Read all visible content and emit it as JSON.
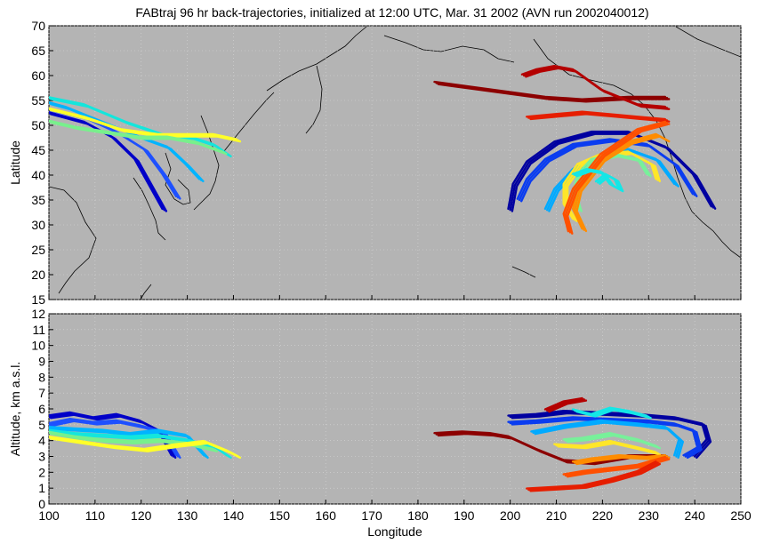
{
  "chart_data": [
    {
      "type": "line",
      "title": "FABtraj 96 hr back-trajectories, initialized at 12:00 UTC, Mar. 31 2002 (AVN run 2002040012)",
      "xlabel": "",
      "ylabel": "Latitude",
      "xlim": [
        100,
        250
      ],
      "ylim": [
        15,
        70
      ],
      "x_ticks": [
        "100",
        "110",
        "120",
        "130",
        "140",
        "150",
        "160",
        "170",
        "180",
        "190",
        "200",
        "210",
        "220",
        "230",
        "240",
        "250"
      ],
      "y_ticks": [
        "15",
        "20",
        "25",
        "30",
        "35",
        "40",
        "45",
        "50",
        "55",
        "60",
        "65",
        "70"
      ],
      "grid": true,
      "background": "#b4b4b4",
      "colormap": [
        "#00008f",
        "#0000ff",
        "#0080ff",
        "#00ffff",
        "#80ff80",
        "#ffff00",
        "#ff8000",
        "#ff0000",
        "#800000"
      ],
      "series": [
        {
          "color": "#0000c8",
          "x": [
            125,
            122,
            119,
            114,
            108,
            102,
            100
          ],
          "y": [
            33,
            38,
            43,
            47.5,
            50.5,
            52,
            52.5
          ]
        },
        {
          "color": "#1e50ff",
          "x": [
            128,
            125,
            121,
            115,
            108,
            101,
            100
          ],
          "y": [
            35.5,
            40,
            45,
            48.5,
            51.5,
            53,
            53.3
          ]
        },
        {
          "color": "#00b4ff",
          "x": [
            133,
            130,
            126,
            120,
            112,
            104,
            100
          ],
          "y": [
            39,
            42,
            45.5,
            47.5,
            50.5,
            53.5,
            54.5
          ]
        },
        {
          "color": "#14e6dc",
          "x": [
            139,
            136,
            131,
            125,
            117,
            108,
            100
          ],
          "y": [
            44,
            46,
            47.5,
            48,
            50.5,
            54,
            55.5
          ]
        },
        {
          "color": "#ffff28",
          "x": [
            141,
            136,
            130,
            124,
            116,
            108,
            100
          ],
          "y": [
            47,
            48,
            48,
            48,
            49,
            51.5,
            53.3
          ]
        },
        {
          "color": "#78f08c",
          "x": [
            138,
            132,
            126,
            120,
            113,
            106,
            100
          ],
          "y": [
            44.5,
            46.5,
            47.5,
            47.5,
            48.5,
            49.5,
            50.8
          ]
        },
        {
          "color": "#8c0000",
          "x": [
            184,
            192,
            200,
            208,
            216,
            226,
            234
          ],
          "y": [
            58.5,
            57.5,
            56.5,
            55.5,
            55,
            55.5,
            55.5
          ]
        },
        {
          "color": "#b40000",
          "x": [
            203,
            206,
            210,
            214,
            220,
            228,
            234
          ],
          "y": [
            60,
            61,
            61.7,
            61,
            57,
            54,
            53.5
          ]
        },
        {
          "color": "#e61e00",
          "x": [
            204,
            210,
            216,
            222,
            228,
            234
          ],
          "y": [
            51.5,
            52,
            52.5,
            52,
            51.5,
            51
          ]
        },
        {
          "color": "#0000a0",
          "x": [
            200,
            201,
            204,
            210,
            218,
            226,
            234,
            240,
            244
          ],
          "y": [
            33,
            38,
            42.5,
            46.5,
            48.5,
            48.5,
            45.5,
            40,
            33.5
          ]
        },
        {
          "color": "#0a3cf0",
          "x": [
            202,
            204,
            208,
            214,
            222,
            230,
            236,
            240
          ],
          "y": [
            35,
            39,
            43,
            46,
            47,
            46,
            42,
            36
          ]
        },
        {
          "color": "#00aaff",
          "x": [
            208,
            210,
            214,
            220,
            226,
            232,
            236
          ],
          "y": [
            33,
            37,
            41,
            44,
            45,
            43,
            38
          ]
        },
        {
          "color": "#ffe628",
          "x": [
            214,
            212,
            212,
            215,
            220,
            226,
            231,
            232
          ],
          "y": [
            31,
            34,
            38,
            42,
            44,
            44.5,
            42,
            39
          ]
        },
        {
          "color": "#78f09a",
          "x": [
            215,
            214,
            215,
            218,
            223,
            228,
            230
          ],
          "y": [
            33,
            36,
            40,
            43,
            44,
            43,
            40
          ]
        },
        {
          "color": "#ff8c00",
          "x": [
            216,
            214,
            215,
            220,
            226,
            232,
            234
          ],
          "y": [
            29,
            33,
            37,
            43,
            46.5,
            48,
            47
          ]
        },
        {
          "color": "#ff5000",
          "x": [
            213,
            212,
            214,
            220,
            228,
            234
          ],
          "y": [
            28.5,
            32,
            37,
            44,
            49,
            50.5
          ]
        },
        {
          "color": "#14e6e6",
          "x": [
            214,
            217,
            220,
            222,
            224,
            223,
            221,
            219
          ],
          "y": [
            40,
            41,
            40.5,
            38,
            37,
            39,
            40,
            38.5
          ]
        }
      ]
    },
    {
      "type": "line",
      "title": "",
      "xlabel": "Longitude",
      "ylabel": "Altitude, km a.s.l.",
      "xlim": [
        100,
        250
      ],
      "ylim": [
        0,
        12
      ],
      "x_ticks": [
        "100",
        "110",
        "120",
        "130",
        "140",
        "150",
        "160",
        "170",
        "180",
        "190",
        "200",
        "210",
        "220",
        "230",
        "240",
        "250"
      ],
      "y_ticks": [
        "0",
        "1",
        "2",
        "3",
        "4",
        "5",
        "6",
        "7",
        "8",
        "9",
        "10",
        "11",
        "12"
      ],
      "grid": true,
      "background": "#b4b4b4",
      "series": [
        {
          "color": "#0000c8",
          "x": [
            100,
            105,
            110,
            115,
            120,
            124,
            127
          ],
          "y": [
            5.5,
            5.7,
            5.4,
            5.6,
            5.2,
            4.6,
            3.0
          ]
        },
        {
          "color": "#1e50ff",
          "x": [
            100,
            105,
            110,
            115,
            120,
            125,
            128
          ],
          "y": [
            5.0,
            5.3,
            5.1,
            5.2,
            4.9,
            4.5,
            3.0
          ]
        },
        {
          "color": "#00b4ff",
          "x": [
            100,
            106,
            112,
            118,
            124,
            130,
            134
          ],
          "y": [
            4.8,
            4.7,
            4.6,
            4.4,
            4.6,
            4.3,
            3.0
          ]
        },
        {
          "color": "#14e6dc",
          "x": [
            100,
            106,
            112,
            118,
            124,
            130,
            136,
            139
          ],
          "y": [
            4.6,
            4.4,
            4.3,
            4.2,
            4.3,
            4.0,
            3.6,
            3.0
          ]
        },
        {
          "color": "#78f08c",
          "x": [
            100,
            106,
            112,
            118,
            124,
            130,
            136
          ],
          "y": [
            4.5,
            4.2,
            4.0,
            3.9,
            4.0,
            3.8,
            3.4
          ]
        },
        {
          "color": "#ffff28",
          "x": [
            100,
            107,
            114,
            121,
            128,
            134,
            139,
            141
          ],
          "y": [
            4.2,
            3.9,
            3.6,
            3.4,
            3.7,
            3.9,
            3.3,
            3.0
          ]
        },
        {
          "color": "#8c0000",
          "x": [
            184,
            190,
            196,
            200,
            206,
            212,
            218,
            226,
            234
          ],
          "y": [
            4.4,
            4.5,
            4.4,
            4.2,
            3.4,
            2.7,
            2.6,
            3.0,
            3.0
          ]
        },
        {
          "color": "#0000a0",
          "x": [
            200,
            206,
            212,
            220,
            228,
            236,
            242,
            243,
            240
          ],
          "y": [
            5.5,
            5.6,
            5.8,
            5.7,
            5.6,
            5.4,
            5.0,
            4.0,
            3.0
          ]
        },
        {
          "color": "#0a3cf0",
          "x": [
            200,
            206,
            214,
            222,
            230,
            236,
            240,
            241,
            238
          ],
          "y": [
            5.1,
            5.2,
            5.4,
            5.3,
            5.2,
            5.0,
            4.6,
            3.5,
            3.0
          ]
        },
        {
          "color": "#00aaff",
          "x": [
            205,
            212,
            220,
            228,
            234,
            237,
            236
          ],
          "y": [
            4.5,
            4.9,
            5.2,
            5.0,
            4.8,
            4.0,
            3.0
          ]
        },
        {
          "color": "#14e6e6",
          "x": [
            214,
            218,
            222,
            226,
            230
          ],
          "y": [
            5.9,
            5.6,
            6.0,
            5.8,
            5.5
          ]
        },
        {
          "color": "#78f09a",
          "x": [
            212,
            216,
            222,
            228,
            232
          ],
          "y": [
            4.0,
            4.1,
            4.4,
            4.0,
            3.6
          ]
        },
        {
          "color": "#ffe628",
          "x": [
            210,
            216,
            222,
            228,
            232
          ],
          "y": [
            3.7,
            3.6,
            3.9,
            3.5,
            3.2
          ]
        },
        {
          "color": "#ff8c00",
          "x": [
            214,
            218,
            224,
            230,
            234
          ],
          "y": [
            2.6,
            2.8,
            3.0,
            2.9,
            3.0
          ]
        },
        {
          "color": "#ff5000",
          "x": [
            212,
            216,
            222,
            228,
            234
          ],
          "y": [
            1.8,
            2.0,
            2.2,
            2.4,
            2.9
          ]
        },
        {
          "color": "#e61e00",
          "x": [
            204,
            210,
            216,
            222,
            228,
            232
          ],
          "y": [
            0.9,
            1.0,
            1.1,
            1.5,
            2.0,
            2.6
          ]
        },
        {
          "color": "#b40000",
          "x": [
            208,
            212,
            216
          ],
          "y": [
            5.9,
            6.4,
            6.6
          ]
        }
      ]
    }
  ]
}
